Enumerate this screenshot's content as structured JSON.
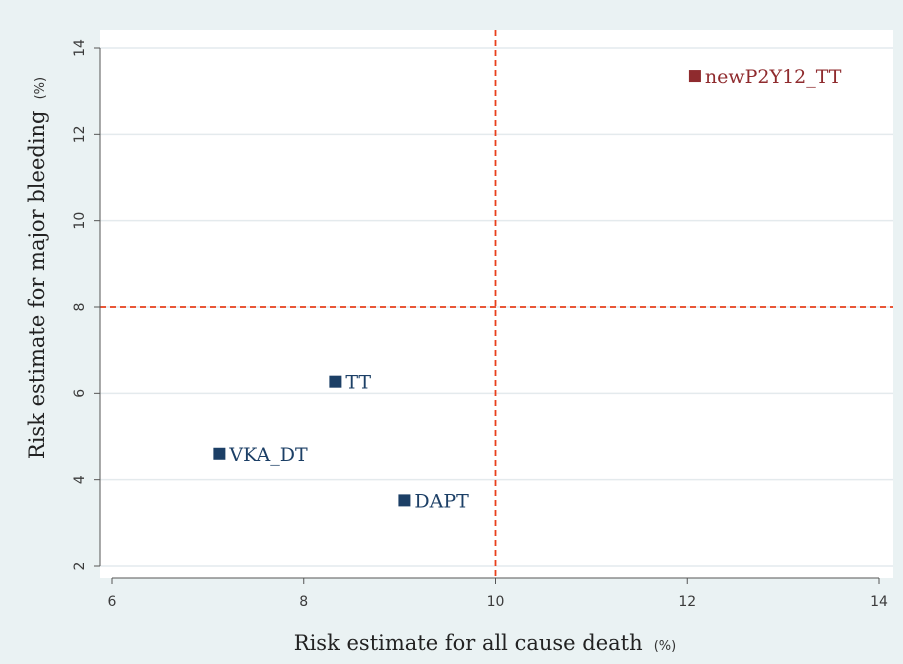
{
  "chart_data": {
    "type": "scatter",
    "title": "",
    "xlabel": "Risk estimate for all cause death",
    "xlabel_unit": "(%)",
    "ylabel": "Risk estimate for major bleeding",
    "ylabel_unit": "(%)",
    "xlim": [
      6,
      14
    ],
    "ylim": [
      2,
      14
    ],
    "xticks": [
      6,
      8,
      10,
      12,
      14
    ],
    "yticks": [
      2,
      4,
      6,
      8,
      10,
      12,
      14
    ],
    "grid": "horizontal",
    "reference_lines": [
      {
        "axis": "x",
        "value": 10,
        "style": "dashed",
        "color": "#e8401c"
      },
      {
        "axis": "y",
        "value": 8,
        "style": "dashed",
        "color": "#e8401c"
      }
    ],
    "points": [
      {
        "label": "newP2Y12_TT",
        "x": 12.08,
        "y": 13.35,
        "color": "#8f2b2e"
      },
      {
        "label": "TT",
        "x": 8.33,
        "y": 6.27,
        "color": "#1c3f66"
      },
      {
        "label": "VKA_DT",
        "x": 7.12,
        "y": 4.6,
        "color": "#1c3f66"
      },
      {
        "label": "DAPT",
        "x": 9.05,
        "y": 3.52,
        "color": "#1c3f66"
      }
    ]
  }
}
